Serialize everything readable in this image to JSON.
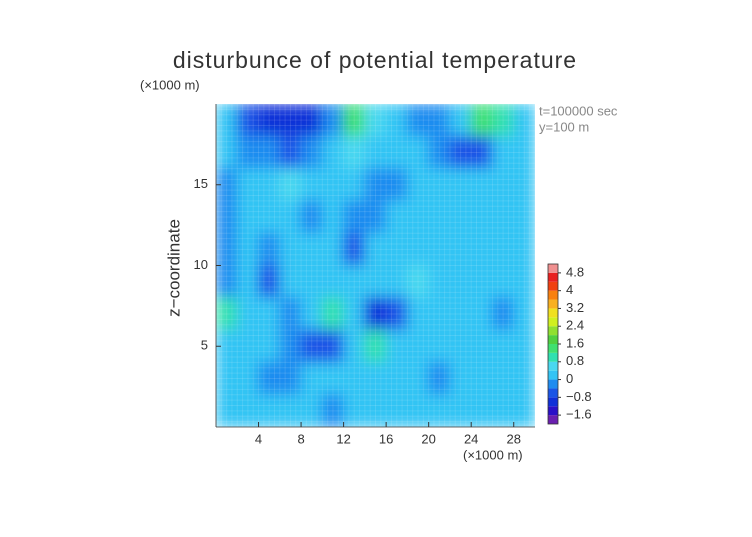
{
  "chart_data": {
    "type": "contour",
    "title": "disturbunce of potential temperature",
    "y_unit_label": "(×1000 m)",
    "x_unit_label": "(×1000 m)",
    "ylabel": "z−coordinate",
    "annotations": [
      "t=100000 sec",
      "y=100 m"
    ],
    "xlim": [
      0,
      30
    ],
    "ylim": [
      0,
      20
    ],
    "xticks": [
      4,
      8,
      12,
      16,
      20,
      24,
      28
    ],
    "yticks": [
      5,
      10,
      15
    ],
    "x": [
      1,
      3,
      5,
      7,
      9,
      11,
      13,
      15,
      17,
      19,
      21,
      23,
      25,
      27,
      29
    ],
    "y": [
      19,
      17,
      15,
      13,
      11,
      9,
      7,
      5,
      3,
      1
    ],
    "z": [
      [
        0.2,
        -0.6,
        -1.0,
        -1.2,
        -1.0,
        -0.4,
        1.2,
        0.4,
        0.2,
        -0.4,
        -0.4,
        0.2,
        1.2,
        1.0,
        0.2
      ],
      [
        0.2,
        -0.2,
        -0.4,
        -0.6,
        -0.4,
        0.2,
        0.4,
        0.2,
        0.0,
        0.2,
        -0.2,
        -0.8,
        -0.6,
        0.2,
        0.2
      ],
      [
        -0.4,
        0.2,
        0.2,
        0.4,
        0.2,
        0.0,
        0.2,
        -0.2,
        -0.4,
        0.2,
        0.2,
        0.2,
        0.2,
        0.2,
        0.2
      ],
      [
        -0.4,
        0.2,
        0.0,
        0.2,
        -0.2,
        0.2,
        -0.4,
        -0.4,
        0.2,
        0.2,
        0.2,
        0.2,
        0.0,
        0.2,
        0.2
      ],
      [
        -0.4,
        0.2,
        -0.4,
        0.2,
        0.2,
        0.0,
        -0.6,
        0.2,
        0.2,
        0.2,
        0.2,
        0.2,
        0.0,
        0.2,
        0.2
      ],
      [
        -0.4,
        0.2,
        -0.6,
        0.2,
        0.2,
        0.2,
        0.2,
        0.2,
        0.2,
        0.4,
        0.2,
        0.2,
        0.2,
        0.2,
        0.2
      ],
      [
        0.8,
        0.2,
        0.2,
        -0.4,
        0.2,
        0.8,
        0.2,
        -1.0,
        -0.6,
        0.2,
        0.2,
        0.2,
        0.0,
        -0.2,
        0.2
      ],
      [
        0.2,
        0.2,
        0.0,
        -0.2,
        -0.6,
        -0.6,
        0.2,
        0.8,
        0.2,
        0.2,
        0.2,
        0.2,
        0.2,
        0.2,
        0.2
      ],
      [
        0.2,
        0.2,
        -0.2,
        -0.2,
        0.0,
        0.2,
        0.2,
        0.2,
        0.2,
        0.0,
        -0.2,
        0.2,
        0.2,
        0.0,
        0.2
      ],
      [
        0.2,
        0.2,
        0.2,
        0.2,
        0.2,
        -0.2,
        0.2,
        0.2,
        0.2,
        0.2,
        0.2,
        0.2,
        0.2,
        0.2,
        0.2
      ]
    ],
    "zlim": [
      -2.0,
      5.2
    ],
    "colors": [
      "#6a1fb0",
      "#2a10c8",
      "#1030d8",
      "#1a55e6",
      "#1f8cf0",
      "#33c4f4",
      "#4ad8f0",
      "#30e0b0",
      "#40e070",
      "#50d040",
      "#90e030",
      "#d0f020",
      "#f0e020",
      "#f8b020",
      "#f88010",
      "#f04010",
      "#e82020",
      "#f09090"
    ],
    "zticks": [
      {
        "value": -1.6,
        "label": "−1.6"
      },
      {
        "value": -0.8,
        "label": "−0.8"
      },
      0,
      0.8,
      1.6,
      2.4,
      3.2,
      4,
      4.8
    ]
  }
}
